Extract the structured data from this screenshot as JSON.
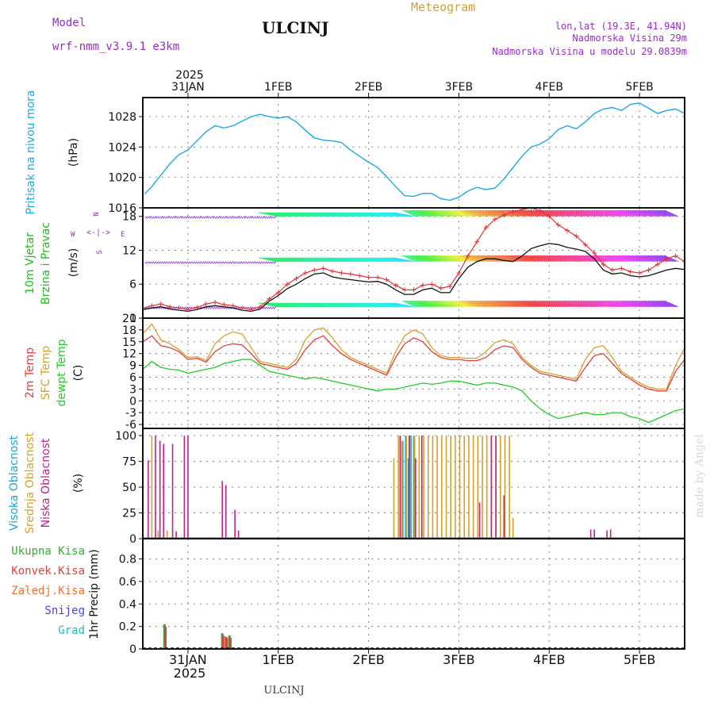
{
  "header": {
    "model_label": "Model",
    "model_name": "wrf-nmm_v3.9.1 e3km",
    "station": "ULCINJ",
    "title": "Meteogram",
    "lonlat": "lon,lat (19.3E, 41.94N)",
    "elevation": "Nadmorska Visina 29m",
    "model_elevation": "Nadmorska Visina u modelu 29.0839m"
  },
  "footer": {
    "station": "ULCINJ",
    "credit": "made by Angel"
  },
  "colors": {
    "pressure": "#1ca8e6",
    "wind_label": "#22bb22",
    "wind_speed": "#e23434",
    "wind_gust": "#111111",
    "temp2m": "#e0403c",
    "sfc": "#d4a12c",
    "dewpt": "#22cc22",
    "high_cloud": "#1ca8d6",
    "mid_cloud": "#d4a12c",
    "low_cloud": "#c0208a",
    "total_precip": "#3aa83a",
    "conv_precip": "#e04040",
    "frz_precip": "#f07030",
    "snow": "#4444dd",
    "hail": "#22bbbb",
    "direction_legend": "#9a2ad0"
  },
  "time_axis": {
    "top_year": "2025",
    "bottom_year": "2025",
    "ticks": [
      "31JAN",
      "1FEB",
      "2FEB",
      "3FEB",
      "4FEB",
      "5FEB"
    ],
    "tick_days": [
      0,
      1,
      2,
      3,
      4,
      5
    ],
    "range_days": [
      -0.5,
      5.5
    ]
  },
  "direction_legend": {
    "north": "N",
    "west": "W",
    "east": "E",
    "south": "S",
    "glyph": "<-|->"
  },
  "chart_data": [
    {
      "type": "line",
      "title": "Pritisak na nivou mora",
      "ylabel": "(hPa)",
      "ylim": [
        1016,
        1030.5
      ],
      "yticks": [
        "1016",
        "1020",
        "1024",
        "1028"
      ],
      "ytick_values": [
        1016,
        1020,
        1024,
        1028
      ],
      "x": [
        -0.48,
        -0.4,
        -0.3,
        -0.2,
        -0.1,
        0,
        0.1,
        0.2,
        0.3,
        0.4,
        0.5,
        0.6,
        0.7,
        0.8,
        0.9,
        1,
        1.1,
        1.2,
        1.3,
        1.4,
        1.5,
        1.6,
        1.7,
        1.8,
        1.9,
        2,
        2.1,
        2.2,
        2.3,
        2.4,
        2.5,
        2.6,
        2.7,
        2.8,
        2.9,
        3,
        3.1,
        3.2,
        3.3,
        3.4,
        3.5,
        3.6,
        3.7,
        3.8,
        3.9,
        4,
        4.1,
        4.2,
        4.3,
        4.4,
        4.5,
        4.6,
        4.7,
        4.8,
        4.9,
        5,
        5.1,
        5.2,
        5.3,
        5.4,
        5.5
      ],
      "series": [
        {
          "name": "Pritisak na nivou mora",
          "values": [
            1017.8,
            1018.8,
            1020.3,
            1021.8,
            1023.0,
            1023.6,
            1024.8,
            1026.0,
            1026.8,
            1026.5,
            1026.8,
            1027.4,
            1028.0,
            1028.3,
            1028.0,
            1027.8,
            1028.0,
            1027.3,
            1026.2,
            1025.2,
            1024.9,
            1024.8,
            1024.6,
            1023.6,
            1022.8,
            1022.0,
            1021.3,
            1020.1,
            1018.8,
            1017.6,
            1017.5,
            1017.9,
            1017.9,
            1017.2,
            1017.0,
            1017.4,
            1018.2,
            1018.7,
            1018.4,
            1018.6,
            1019.8,
            1021.3,
            1022.8,
            1024.0,
            1024.4,
            1025.1,
            1026.3,
            1026.8,
            1026.4,
            1027.3,
            1028.4,
            1029.0,
            1029.2,
            1028.8,
            1029.6,
            1029.8,
            1029.1,
            1028.4,
            1028.8,
            1029.0,
            1028.4
          ]
        }
      ]
    },
    {
      "type": "line",
      "title": "10m Vjetar Brzina i Pravac",
      "title_line1": "10m Vjetar",
      "title_line2": "Brzina i Pravac",
      "ylabel": "(m/s)",
      "ylim": [
        0,
        19.5
      ],
      "yticks": [
        "0",
        "6",
        "12",
        "18"
      ],
      "ytick_values": [
        0,
        6,
        12,
        18
      ],
      "x": [
        -0.5,
        -0.4,
        -0.3,
        -0.2,
        -0.1,
        0,
        0.1,
        0.2,
        0.3,
        0.4,
        0.5,
        0.6,
        0.7,
        0.8,
        0.9,
        1,
        1.1,
        1.2,
        1.3,
        1.4,
        1.5,
        1.6,
        1.7,
        1.8,
        1.9,
        2,
        2.1,
        2.2,
        2.3,
        2.4,
        2.5,
        2.6,
        2.7,
        2.8,
        2.9,
        3,
        3.1,
        3.2,
        3.3,
        3.4,
        3.5,
        3.6,
        3.7,
        3.8,
        3.9,
        4,
        4.1,
        4.2,
        4.3,
        4.4,
        4.5,
        4.6,
        4.7,
        4.8,
        4.9,
        5,
        5.1,
        5.2,
        5.3,
        5.4,
        5.5
      ],
      "series": [
        {
          "name": "Wind gust",
          "values": [
            1.5,
            1.8,
            2.0,
            1.6,
            1.4,
            1.2,
            1.5,
            2.0,
            2.2,
            2.0,
            1.8,
            1.4,
            1.2,
            1.6,
            3.0,
            4.0,
            5.2,
            6.0,
            7.0,
            7.8,
            8.0,
            7.3,
            7.0,
            6.8,
            6.6,
            6.4,
            6.5,
            6.0,
            5.0,
            4.2,
            4.2,
            5.0,
            5.3,
            4.5,
            4.5,
            7.0,
            9.0,
            10.0,
            10.5,
            10.5,
            10.2,
            10.0,
            11.0,
            12.3,
            12.8,
            13.2,
            13.0,
            12.5,
            12.2,
            11.8,
            10.5,
            8.5,
            7.8,
            8.0,
            7.5,
            7.3,
            7.5,
            8.0,
            8.5,
            8.8,
            8.6
          ]
        },
        {
          "name": "Wind speed",
          "values": [
            1.8,
            2.2,
            2.5,
            2.0,
            1.8,
            1.5,
            1.9,
            2.5,
            2.8,
            2.4,
            2.2,
            1.8,
            1.5,
            2.0,
            3.4,
            4.5,
            6.0,
            7.0,
            8.0,
            8.5,
            8.8,
            8.3,
            8.0,
            7.8,
            7.5,
            7.2,
            7.2,
            6.8,
            5.8,
            5.0,
            5.0,
            5.8,
            6.0,
            5.3,
            5.6,
            8.0,
            11.0,
            13.5,
            16.0,
            17.5,
            18.2,
            18.8,
            19.2,
            19.5,
            19.0,
            18.0,
            16.5,
            15.5,
            14.5,
            13.0,
            11.5,
            9.5,
            8.5,
            8.8,
            8.2,
            8.0,
            8.5,
            9.5,
            10.5,
            11.0,
            10.0
          ]
        }
      ]
    },
    {
      "type": "line",
      "title": "2m Temp / SFC Temp / dewpt Temp",
      "label_2m": "2m Temp",
      "label_sfc": "SFC Temp",
      "label_dewpt": "dewpt Temp",
      "ylabel": "(C)",
      "ylim": [
        -7,
        21
      ],
      "yticks": [
        "-6",
        "-3",
        "0",
        "3",
        "6",
        "9",
        "12",
        "15",
        "18",
        "21"
      ],
      "ytick_values": [
        -6,
        -3,
        0,
        3,
        6,
        9,
        12,
        15,
        18,
        21
      ],
      "x": [
        -0.5,
        -0.4,
        -0.3,
        -0.2,
        -0.1,
        0,
        0.1,
        0.2,
        0.3,
        0.4,
        0.5,
        0.6,
        0.7,
        0.8,
        0.9,
        1,
        1.1,
        1.2,
        1.3,
        1.4,
        1.5,
        1.6,
        1.7,
        1.8,
        1.9,
        2,
        2.1,
        2.2,
        2.3,
        2.4,
        2.5,
        2.6,
        2.7,
        2.8,
        2.9,
        3,
        3.1,
        3.2,
        3.3,
        3.4,
        3.5,
        3.6,
        3.7,
        3.8,
        3.9,
        4,
        4.1,
        4.2,
        4.3,
        4.4,
        4.5,
        4.6,
        4.7,
        4.8,
        4.9,
        5,
        5.1,
        5.2,
        5.3,
        5.4,
        5.5
      ],
      "series": [
        {
          "name": "2m Temp",
          "values": [
            15.0,
            16.5,
            14.0,
            13.5,
            12.5,
            10.5,
            10.8,
            9.8,
            12.5,
            14.0,
            14.5,
            14.2,
            12.0,
            9.5,
            9.0,
            8.5,
            8.0,
            9.5,
            13.0,
            15.5,
            16.5,
            14.0,
            12.0,
            10.5,
            9.5,
            8.5,
            7.5,
            6.5,
            11.0,
            14.5,
            16.0,
            15.0,
            12.5,
            11.0,
            10.5,
            10.5,
            10.2,
            10.2,
            11.0,
            13.0,
            14.0,
            13.5,
            10.5,
            8.5,
            7.0,
            6.5,
            6.0,
            5.5,
            5.0,
            8.5,
            11.5,
            12.0,
            9.5,
            7.0,
            5.5,
            4.0,
            3.0,
            2.5,
            2.5,
            7.5,
            10.5
          ]
        },
        {
          "name": "SFC Temp",
          "values": [
            17.0,
            19.5,
            15.5,
            14.5,
            13.0,
            11.0,
            11.2,
            10.2,
            14.5,
            16.5,
            17.5,
            17.0,
            13.5,
            10.0,
            9.5,
            9.0,
            8.5,
            10.5,
            15.5,
            18.0,
            18.5,
            16.0,
            13.0,
            11.0,
            10.0,
            9.0,
            8.0,
            7.0,
            12.5,
            16.5,
            18.0,
            17.0,
            13.5,
            11.5,
            11.0,
            11.0,
            10.8,
            10.8,
            12.5,
            14.8,
            15.5,
            14.5,
            11.0,
            9.0,
            7.5,
            7.0,
            6.5,
            6.0,
            5.5,
            10.5,
            13.5,
            14.0,
            11.0,
            7.5,
            6.0,
            4.5,
            3.5,
            3.0,
            3.0,
            9.0,
            13.5
          ]
        },
        {
          "name": "dewpt Temp",
          "values": [
            8.0,
            10.0,
            8.5,
            8.0,
            7.8,
            7.0,
            7.5,
            8.0,
            8.5,
            9.5,
            10.0,
            10.5,
            10.5,
            9.0,
            7.5,
            7.0,
            6.5,
            6.0,
            5.5,
            6.0,
            5.5,
            5.0,
            4.5,
            4.0,
            3.5,
            3.0,
            2.5,
            3.0,
            3.0,
            3.5,
            4.0,
            4.5,
            4.2,
            4.5,
            5.0,
            5.0,
            4.5,
            4.0,
            4.5,
            4.5,
            4.0,
            3.5,
            2.5,
            0.0,
            -2.0,
            -3.5,
            -4.5,
            -4.0,
            -3.5,
            -3.0,
            -3.5,
            -3.5,
            -3.0,
            -3.0,
            -4.0,
            -4.5,
            -5.5,
            -4.5,
            -3.5,
            -2.5,
            -2.0
          ]
        }
      ]
    },
    {
      "type": "bar",
      "title": "Visoka / Srednja / Niska Oblacnost",
      "label_high": "Visoka Oblacnost",
      "label_mid": "Srednja Oblacnost",
      "label_low": "Niska Oblacnost",
      "ylabel": "(%)",
      "ylim": [
        0,
        107
      ],
      "yticks": [
        "0",
        "25",
        "50",
        "75",
        "100"
      ],
      "ytick_values": [
        0,
        25,
        50,
        75,
        100
      ],
      "series": [
        {
          "name": "Visoka Oblacnost",
          "x": [
            2.35,
            2.38,
            2.41,
            2.44,
            2.47,
            2.5
          ],
          "values": [
            100,
            95,
            100,
            78,
            100,
            100
          ]
        },
        {
          "name": "Srednja Oblacnost",
          "x": [
            -0.4,
            -0.33,
            -0.23,
            2.28,
            2.33,
            2.37,
            2.42,
            2.46,
            2.51,
            2.56,
            2.61,
            2.66,
            2.71,
            2.76,
            2.81,
            2.86,
            2.91,
            2.96,
            3.01,
            3.06,
            3.11,
            3.16,
            3.21,
            3.26,
            3.31,
            3.36,
            3.41,
            3.46,
            3.51,
            3.56,
            3.6
          ],
          "values": [
            100,
            8,
            8,
            78,
            100,
            95,
            100,
            100,
            100,
            100,
            100,
            100,
            100,
            100,
            100,
            100,
            100,
            100,
            100,
            100,
            100,
            100,
            100,
            100,
            100,
            100,
            100,
            100,
            100,
            100,
            20
          ]
        },
        {
          "name": "Niska Oblacnost",
          "x": [
            -0.44,
            -0.36,
            -0.31,
            -0.27,
            -0.17,
            -0.13,
            -0.04,
            0.0,
            0.38,
            0.42,
            0.52,
            0.56,
            2.35,
            2.45,
            2.52,
            2.59,
            3.23,
            3.36,
            3.41,
            3.5,
            4.46,
            4.5,
            4.64,
            4.68
          ],
          "values": [
            76,
            100,
            95,
            92,
            92,
            7,
            100,
            100,
            56,
            52,
            28,
            8,
            100,
            100,
            78,
            100,
            35,
            100,
            100,
            42,
            9,
            9,
            8,
            9
          ]
        }
      ]
    },
    {
      "type": "bar",
      "title": "1hr Precip",
      "ylabel": "1hr Precip (mm)",
      "labels": {
        "total": "Ukupna Kisa",
        "conv": "Konvek.Kisa",
        "frz": "Zaledj.Kisa",
        "snow": "Snijeg",
        "hail": "Grad"
      },
      "ylim": [
        0,
        0.98
      ],
      "yticks": [
        "0",
        "0.2",
        "0.4",
        "0.6",
        "0.8"
      ],
      "ytick_values": [
        0,
        0.2,
        0.4,
        0.6,
        0.8
      ],
      "series": [
        {
          "name": "Ukupna Kisa",
          "x": [
            -0.26,
            0.38,
            0.42,
            0.46
          ],
          "values": [
            0.22,
            0.14,
            0.11,
            0.12
          ]
        },
        {
          "name": "Konvek.Kisa",
          "x": [
            -0.25,
            0.39,
            0.43,
            0.47
          ],
          "values": [
            0.2,
            0.12,
            0.1,
            0.1
          ]
        }
      ]
    }
  ]
}
